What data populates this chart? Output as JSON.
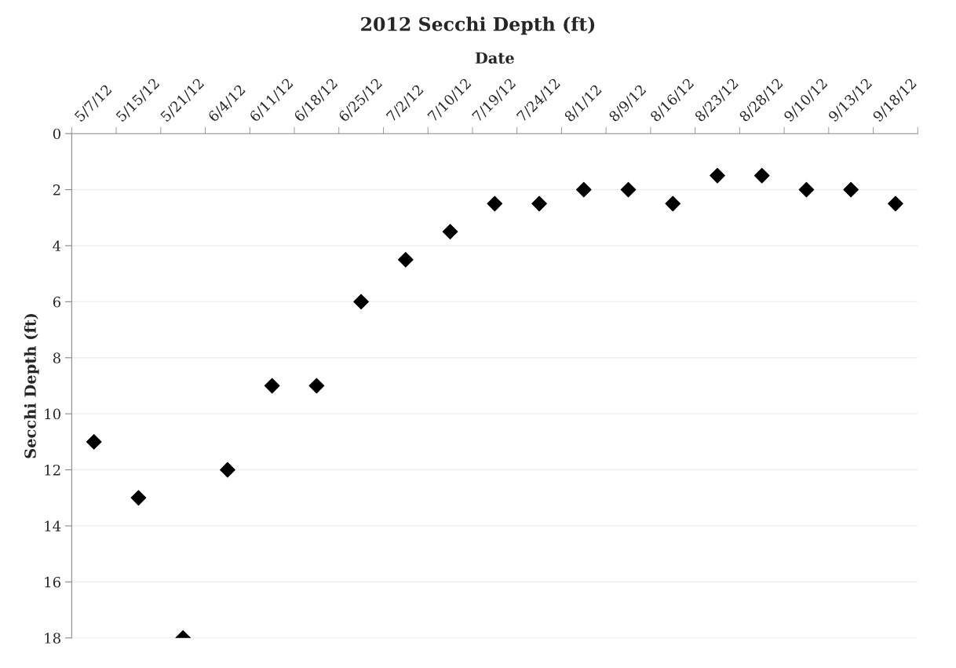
{
  "chart_data": {
    "type": "scatter",
    "title": "2012 Secchi Depth (ft)",
    "xlabel": "Date",
    "ylabel": "Secchi Depth (ft)",
    "categories": [
      "5/7/12",
      "5/15/12",
      "5/21/12",
      "6/4/12",
      "6/11/12",
      "6/18/12",
      "6/25/12",
      "7/2/12",
      "7/10/12",
      "7/19/12",
      "7/24/12",
      "8/1/12",
      "8/9/12",
      "8/16/12",
      "8/23/12",
      "8/28/12",
      "9/10/12",
      "9/13/12",
      "9/18/12"
    ],
    "series": [
      {
        "color": "#000000",
        "values": [
          11,
          13,
          18,
          12,
          9,
          9,
          6,
          4.5,
          3.5,
          2.5,
          2.5,
          2,
          2,
          2.5,
          1.5,
          1.5,
          2,
          2,
          2.5
        ]
      }
    ],
    "ylim": [
      18,
      0
    ],
    "yticks": [
      0,
      2,
      4,
      6,
      8,
      10,
      12,
      14,
      16,
      18
    ],
    "grid": "y",
    "marker": "diamond"
  }
}
